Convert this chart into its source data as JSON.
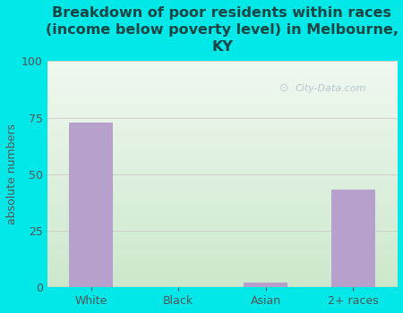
{
  "categories": [
    "White",
    "Black",
    "Asian",
    "2+ races"
  ],
  "values": [
    73,
    0,
    2,
    43
  ],
  "bar_color": "#b8a0cc",
  "title": "Breakdown of poor residents within races\n(income below poverty level) in Melbourne,\nKY",
  "ylabel": "absolute numbers",
  "ylim": [
    0,
    100
  ],
  "yticks": [
    0,
    25,
    50,
    75,
    100
  ],
  "bg_color": "#00e8e8",
  "plot_bg_top_left": "#e8f0e8",
  "plot_bg_top_right": "#dce8dc",
  "plot_bg_bottom": "#cce8cc",
  "title_color": "#1a4444",
  "axis_color": "#555555",
  "watermark": "City-Data.com",
  "title_fontsize": 11.5,
  "label_fontsize": 9,
  "tick_fontsize": 9
}
